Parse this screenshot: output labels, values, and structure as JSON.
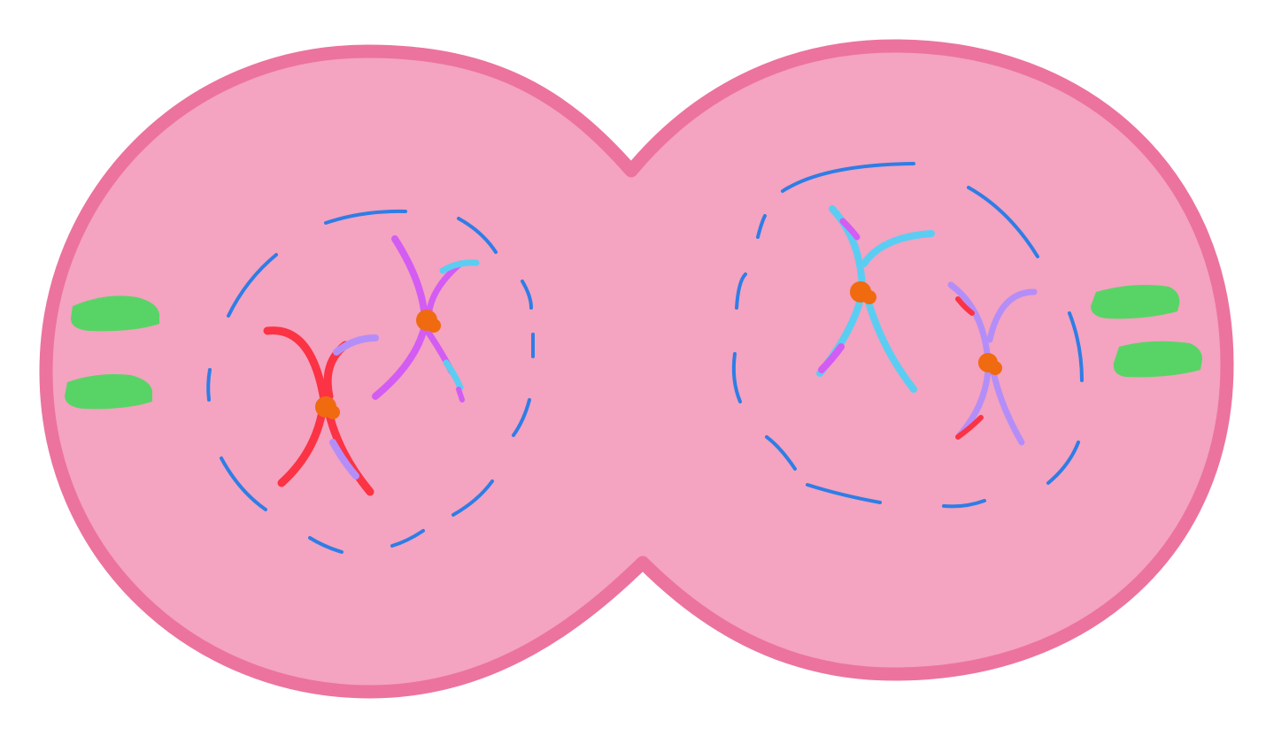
{
  "colors": {
    "background": "#ffffff",
    "cell_fill": "#f4a3c0",
    "cell_outline": "#ec739e",
    "nuclear_envelope": "#2f7de6",
    "centriole": "#58d466",
    "centromere": "#f06a10",
    "chromosome_red": "#fb3344",
    "chromosome_magenta": "#d35cf3",
    "chromosome_cyan": "#5ccdf2",
    "chromosome_lavender": "#b48ef8"
  },
  "cells": [
    {
      "name": "left-daughter-cell",
      "centrioles": 2,
      "chromosome_pairs": [
        {
          "name": "red-chromosome-pair",
          "main_color": "chromosome_red",
          "crossover_color": "chromosome_lavender"
        },
        {
          "name": "magenta-chromosome-pair",
          "main_color": "chromosome_magenta",
          "crossover_color": "chromosome_cyan"
        }
      ]
    },
    {
      "name": "right-daughter-cell",
      "centrioles": 2,
      "chromosome_pairs": [
        {
          "name": "cyan-chromosome-pair",
          "main_color": "chromosome_cyan",
          "crossover_color": "chromosome_magenta"
        },
        {
          "name": "lavender-chromosome-pair",
          "main_color": "chromosome_lavender",
          "crossover_color": "chromosome_red"
        }
      ]
    }
  ]
}
